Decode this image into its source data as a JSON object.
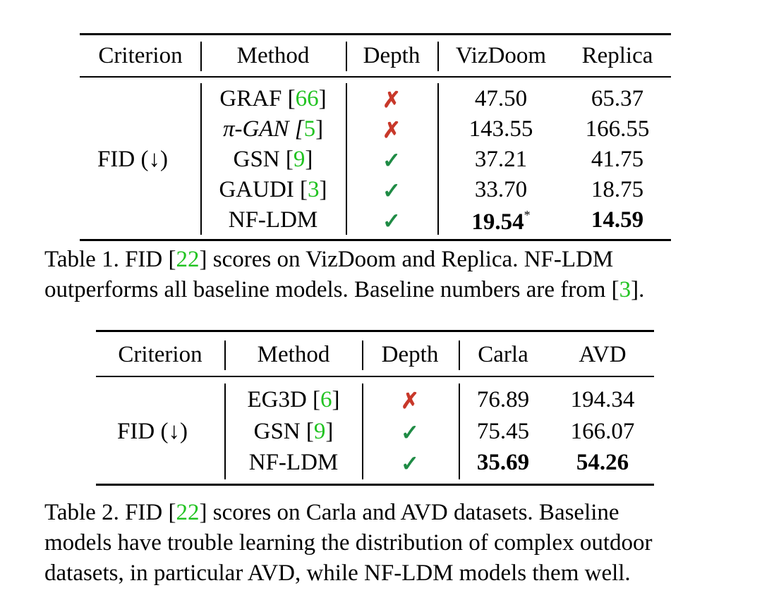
{
  "table1": {
    "headers": [
      "Criterion",
      "Method",
      "Depth",
      "VizDoom",
      "Replica"
    ],
    "criterion": "FID (↓)",
    "rows": [
      {
        "method": "GRAF [",
        "cite": "66",
        "close": "]",
        "depth": "✗",
        "depth_type": "cross",
        "v1": "47.50",
        "v2": "65.37"
      },
      {
        "method": "π-GAN [",
        "cite": "5",
        "close": "]",
        "depth": "✗",
        "depth_type": "cross",
        "v1": "143.55",
        "v2": "166.55"
      },
      {
        "method": "GSN [",
        "cite": "9",
        "close": "]",
        "depth": "✓",
        "depth_type": "check",
        "v1": "37.21",
        "v2": "41.75"
      },
      {
        "method": "GAUDI [",
        "cite": "3",
        "close": "]",
        "depth": "✓",
        "depth_type": "check",
        "v1": "33.70",
        "v2": "18.75"
      },
      {
        "method": "NF-LDM",
        "cite": "",
        "close": "",
        "depth": "✓",
        "depth_type": "check",
        "v1": "19.54",
        "v1_sup": "*",
        "v2": "14.59",
        "bold": true
      }
    ],
    "caption": {
      "line1_a": "Table 1.  FID [",
      "line1_cite": "22",
      "line1_b": "] scores on VizDoom and Replica.  NF-LDM",
      "line2_a": "outperforms all baseline models. Baseline numbers are from [",
      "line2_cite": "3",
      "line2_b": "]."
    }
  },
  "table2": {
    "headers": [
      "Criterion",
      "Method",
      "Depth",
      "Carla",
      "AVD"
    ],
    "criterion": "FID (↓)",
    "rows": [
      {
        "method": "EG3D [",
        "cite": "6",
        "close": "]",
        "depth": "✗",
        "depth_type": "cross",
        "v1": "76.89",
        "v2": "194.34"
      },
      {
        "method": "GSN [",
        "cite": "9",
        "close": "]",
        "depth": "✓",
        "depth_type": "check",
        "v1": "75.45",
        "v2": "166.07"
      },
      {
        "method": "NF-LDM",
        "cite": "",
        "close": "",
        "depth": "✓",
        "depth_type": "check",
        "v1": "35.69",
        "v2": "54.26",
        "bold": true
      }
    ],
    "caption": {
      "line1_a": "Table 2.  FID [",
      "line1_cite": "22",
      "line1_b": "] scores on Carla and AVD datasets.  Baseline",
      "line2": "models have trouble learning the distribution of complex outdoor",
      "line3": "datasets, in particular AVD, while NF-LDM models them well."
    }
  }
}
